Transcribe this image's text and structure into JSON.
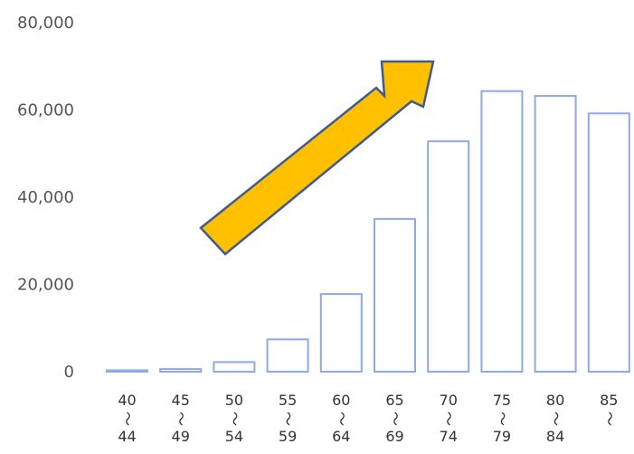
{
  "chart_data": {
    "type": "bar",
    "categories": [
      [
        "40",
        "～",
        "44"
      ],
      [
        "45",
        "～",
        "49"
      ],
      [
        "50",
        "～",
        "54"
      ],
      [
        "55",
        "～",
        "59"
      ],
      [
        "60",
        "～",
        "64"
      ],
      [
        "65",
        "～",
        "69"
      ],
      [
        "70",
        "～",
        "74"
      ],
      [
        "75",
        "～",
        "79"
      ],
      [
        "80",
        "～",
        "84"
      ],
      [
        "85",
        "～"
      ]
    ],
    "values": [
      200,
      600,
      2200,
      7400,
      17800,
      35000,
      52800,
      64300,
      63200,
      59200
    ],
    "yticks": [
      "0",
      "20,000",
      "40,000",
      "60,000",
      "80,000"
    ],
    "ytick_values": [
      0,
      20000,
      40000,
      60000,
      80000
    ],
    "ylim": [
      0,
      80000
    ],
    "grid": false,
    "colors": {
      "bar_fill": "#ffffff",
      "bar_stroke": "#8faadc",
      "arrow_fill": "#ffc000",
      "arrow_stroke": "#3f5b8f"
    },
    "annotation": {
      "shape": "arrow-icon",
      "direction": "up-right"
    }
  }
}
